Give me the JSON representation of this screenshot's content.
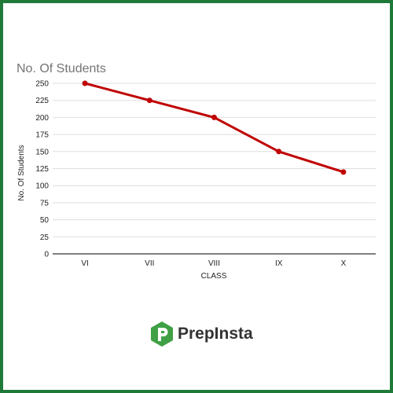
{
  "chart_data": {
    "type": "line",
    "title": "No. Of Students",
    "xlabel": "CLASS",
    "ylabel": "No. Of Students",
    "categories": [
      "VI",
      "VII",
      "VIII",
      "IX",
      "X"
    ],
    "series": [
      {
        "values": [
          250,
          225,
          200,
          150,
          120
        ],
        "color": "#c00000"
      }
    ],
    "ylim": [
      0,
      250
    ],
    "yticks": [
      0,
      25,
      50,
      75,
      100,
      125,
      150,
      175,
      200,
      225,
      250
    ],
    "grid": true,
    "legend": "none"
  },
  "brand": {
    "name": "PrepInsta",
    "logo_color": "#3fa046",
    "frame_color": "#1f7a3a"
  }
}
